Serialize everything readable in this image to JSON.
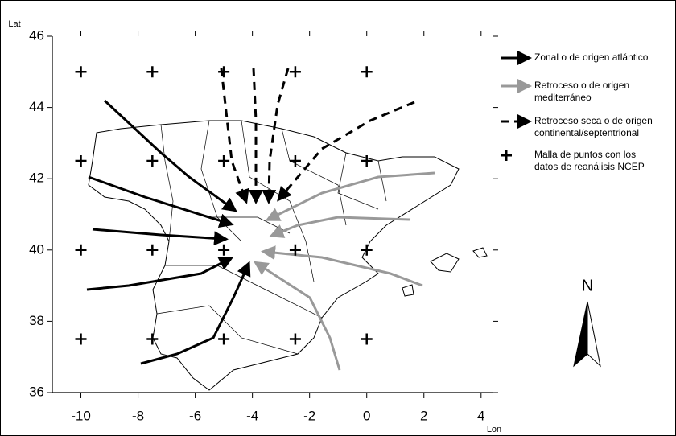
{
  "map": {
    "x_label": "Lon",
    "y_label": "Lat",
    "xlim": [
      -11,
      4.4
    ],
    "ylim": [
      36,
      46
    ],
    "xticks": [
      -10,
      -8,
      -6,
      -4,
      -2,
      0,
      2,
      4
    ],
    "yticks": [
      36,
      38,
      40,
      42,
      44,
      46
    ],
    "grid_points": [
      {
        "lon": -10,
        "lat": 45
      },
      {
        "lon": -7.5,
        "lat": 45
      },
      {
        "lon": -5,
        "lat": 45
      },
      {
        "lon": -2.5,
        "lat": 45
      },
      {
        "lon": 0,
        "lat": 45
      },
      {
        "lon": -10,
        "lat": 42.5
      },
      {
        "lon": -7.5,
        "lat": 42.5
      },
      {
        "lon": -5,
        "lat": 42.5
      },
      {
        "lon": -2.5,
        "lat": 42.5
      },
      {
        "lon": 0,
        "lat": 42.5
      },
      {
        "lon": -10,
        "lat": 40
      },
      {
        "lon": -7.5,
        "lat": 40
      },
      {
        "lon": -5,
        "lat": 40
      },
      {
        "lon": -2.5,
        "lat": 40
      },
      {
        "lon": 0,
        "lat": 40
      },
      {
        "lon": -10,
        "lat": 37.5
      },
      {
        "lon": -7.5,
        "lat": 37.5
      },
      {
        "lon": -5,
        "lat": 37.5
      },
      {
        "lon": -2.5,
        "lat": 37.5
      },
      {
        "lon": 0,
        "lat": 37.5
      }
    ],
    "legend": [
      {
        "lines": [
          "Zonal o de origen atlántico"
        ]
      },
      {
        "lines": [
          "Retroceso o de origen",
          "mediterráneo"
        ]
      },
      {
        "lines": [
          "Retroceso seca o de origen",
          "continental/septentrional"
        ]
      },
      {
        "lines": [
          "Malla de puntos con los",
          "datos de reanálisis NCEP"
        ]
      }
    ],
    "north_label": "N"
  }
}
